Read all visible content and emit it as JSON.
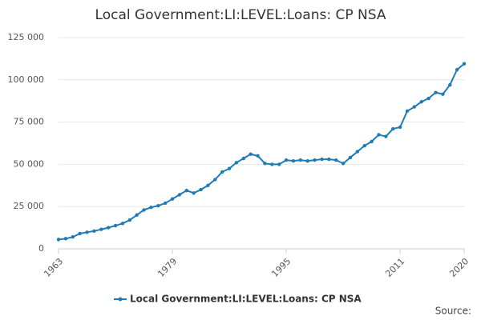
{
  "chart_data": {
    "type": "line",
    "title": "Local Government:LI:LEVEL:Loans: CP NSA",
    "x": [
      1963,
      1964,
      1965,
      1966,
      1967,
      1968,
      1969,
      1970,
      1971,
      1972,
      1973,
      1974,
      1975,
      1976,
      1977,
      1978,
      1979,
      1980,
      1981,
      1982,
      1983,
      1984,
      1985,
      1986,
      1987,
      1988,
      1989,
      1990,
      1991,
      1992,
      1993,
      1994,
      1995,
      1996,
      1997,
      1998,
      1999,
      2000,
      2001,
      2002,
      2003,
      2004,
      2005,
      2006,
      2007,
      2008,
      2009,
      2010,
      2011,
      2012,
      2013,
      2014,
      2015,
      2016,
      2017,
      2018,
      2019,
      2020
    ],
    "series": [
      {
        "name": "Local Government:LI:LEVEL:Loans: CP NSA",
        "color": "#1f7bb6",
        "values": [
          5500,
          6000,
          7000,
          9000,
          9800,
          10500,
          11500,
          12500,
          13700,
          15000,
          17000,
          20000,
          23000,
          24500,
          25500,
          27000,
          29500,
          32000,
          34500,
          33000,
          35000,
          37500,
          41000,
          45500,
          47500,
          51000,
          53500,
          56000,
          55000,
          50500,
          50000,
          50000,
          52500,
          52000,
          52500,
          52000,
          52500,
          53000,
          53000,
          52500,
          50500,
          54000,
          57500,
          61000,
          63500,
          67500,
          66500,
          71000,
          72000,
          81500,
          84000,
          87000,
          89000,
          92500,
          91500,
          97000,
          106000,
          109500
        ]
      }
    ],
    "xlim": [
      1963,
      2020
    ],
    "xticks": [
      1963,
      1979,
      1995,
      2011,
      2020
    ],
    "ylim": [
      0,
      125000
    ],
    "yticks": [
      0,
      {
        "value": 25000,
        "label": "25 000"
      },
      {
        "value": 50000,
        "label": "50 000"
      },
      {
        "value": 75000,
        "label": "75 000"
      },
      {
        "value": 100000,
        "label": "100 000"
      },
      {
        "value": 125000,
        "label": "125 000"
      }
    ],
    "grid": true,
    "legend": "bottom",
    "source": "Source:"
  }
}
